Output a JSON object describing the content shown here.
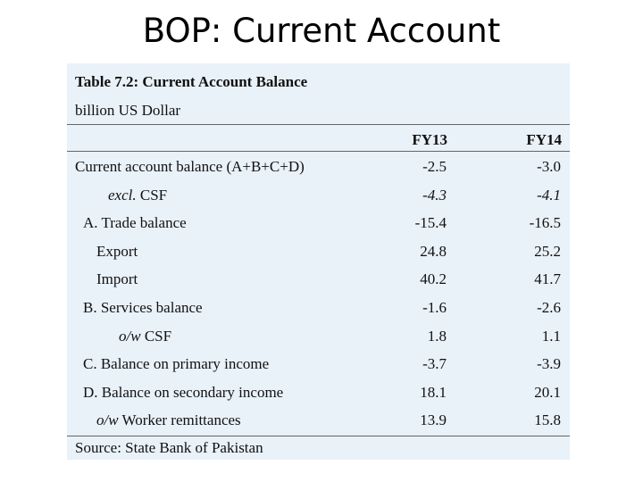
{
  "slide": {
    "title": "BOP: Current Account"
  },
  "table": {
    "title": "Table 7.2: Current Account Balance",
    "unit": "billion US Dollar",
    "columns": [
      "FY13",
      "FY14"
    ],
    "rows": [
      {
        "label": "Current account balance (A+B+C+D)",
        "fy13": "-2.5",
        "fy14": "-3.0"
      },
      {
        "label_prefix": "excl.",
        "label": " CSF",
        "fy13": "-4.3",
        "fy14": "-4.1"
      },
      {
        "label": "A. Trade balance",
        "fy13": "-15.4",
        "fy14": "-16.5"
      },
      {
        "label": "Export",
        "fy13": "24.8",
        "fy14": "25.2"
      },
      {
        "label": "Import",
        "fy13": "40.2",
        "fy14": "41.7"
      },
      {
        "label": "B. Services balance",
        "fy13": "-1.6",
        "fy14": "-2.6"
      },
      {
        "label_prefix": "o/w",
        "label": " CSF",
        "fy13": "1.8",
        "fy14": "1.1"
      },
      {
        "label": "C. Balance on primary income",
        "fy13": "-3.7",
        "fy14": "-3.9"
      },
      {
        "label": "D. Balance on secondary income",
        "fy13": "18.1",
        "fy14": "20.1"
      },
      {
        "label_prefix": "o/w",
        "label": " Worker remittances",
        "fy13": "13.9",
        "fy14": "15.8"
      }
    ],
    "source": "Source: State Bank of Pakistan"
  }
}
